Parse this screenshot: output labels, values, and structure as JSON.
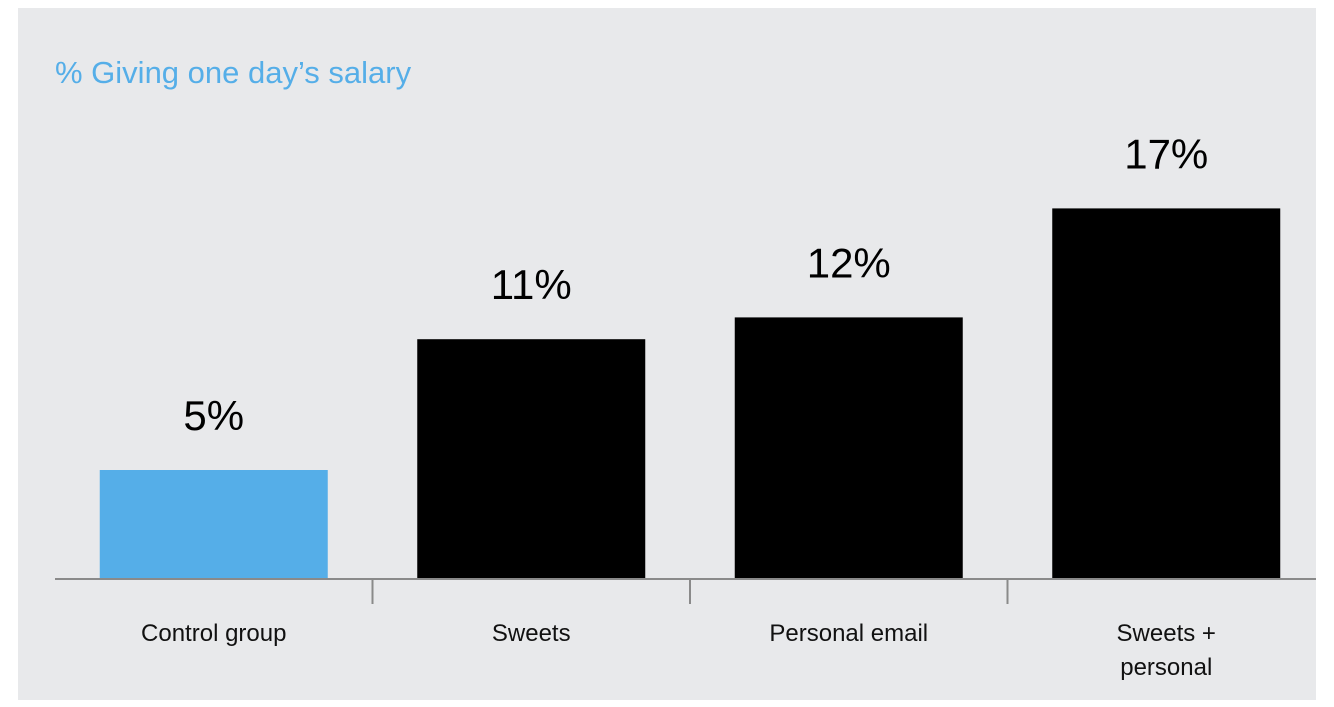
{
  "chart_data": {
    "type": "bar",
    "title": "% Giving one day’s salary",
    "categories": [
      "Control group",
      "Sweets",
      "Personal email",
      "Sweets + personal"
    ],
    "values": [
      5,
      11,
      12,
      17
    ],
    "value_labels": [
      "5%",
      "11%",
      "12%",
      "17%"
    ],
    "colors": [
      "#55aee8",
      "#000000",
      "#000000",
      "#000000"
    ]
  }
}
